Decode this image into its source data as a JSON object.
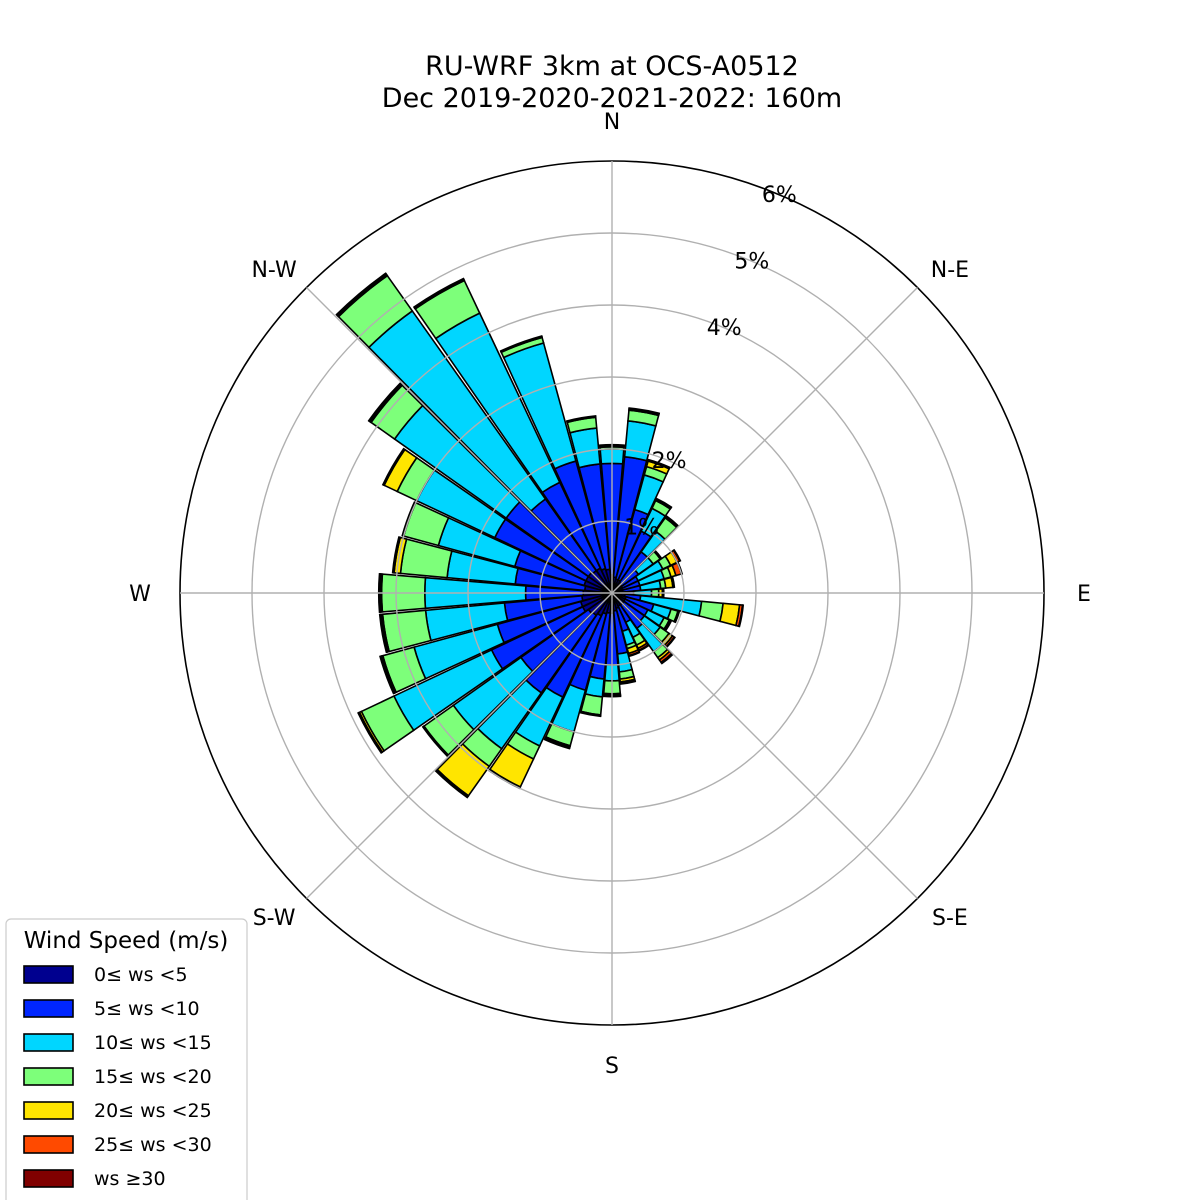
{
  "chart_data": {
    "type": "windrose",
    "title": "RU-WRF 3km at OCS-A0512",
    "subtitle": "Dec 2019-2020-2021-2022: 160m",
    "radial_ticks": [
      "1%",
      "2%",
      "4%",
      "5%",
      "6%"
    ],
    "radial_tick_values": [
      1,
      2,
      4,
      5,
      6
    ],
    "grid_rings_percent": [
      1,
      2,
      3,
      4,
      5,
      6
    ],
    "r_max_percent": 6,
    "directions": [
      "N",
      "N-E",
      "E",
      "S-E",
      "S",
      "S-W",
      "W",
      "N-W"
    ],
    "direction_angles_deg": [
      0,
      45,
      90,
      135,
      180,
      225,
      270,
      315
    ],
    "sector_count": 36,
    "sector_width_deg": 10,
    "legend": {
      "title": "Wind Speed (m/s)",
      "placement": "bottom-left",
      "entries": [
        "0≤ ws <5",
        "5≤ ws <10",
        "10≤ ws <15",
        "15≤ ws <20",
        "20≤ ws <25",
        "25≤ ws <30",
        "ws ≥30"
      ]
    },
    "colors": [
      "#00008f",
      "#0026ff",
      "#00d6ff",
      "#7dff7a",
      "#ffe500",
      "#ff4a00",
      "#800000"
    ],
    "sectors_center_deg": [
      0,
      10,
      20,
      30,
      40,
      50,
      60,
      70,
      80,
      90,
      100,
      110,
      120,
      130,
      140,
      150,
      160,
      170,
      180,
      190,
      200,
      210,
      220,
      230,
      240,
      250,
      260,
      270,
      280,
      290,
      300,
      310,
      320,
      330,
      340,
      350
    ],
    "cumulative_percent": [
      [
        0.25,
        1.8,
        2.0,
        2.03,
        2.04,
        2.05,
        2.06
      ],
      [
        0.22,
        1.9,
        2.4,
        2.55,
        2.57,
        2.58,
        2.58
      ],
      [
        0.2,
        1.2,
        1.7,
        1.82,
        1.9,
        1.91,
        1.92
      ],
      [
        0.2,
        0.95,
        1.3,
        1.42,
        1.43,
        1.44,
        1.45
      ],
      [
        0.18,
        0.7,
        1.05,
        1.28,
        1.3,
        1.31,
        1.31
      ],
      [
        0.16,
        0.45,
        0.7,
        0.82,
        0.83,
        0.84,
        0.84
      ],
      [
        0.16,
        0.4,
        0.78,
        0.9,
        1.0,
        1.04,
        1.05
      ],
      [
        0.15,
        0.4,
        0.75,
        0.85,
        0.92,
        1.0,
        1.01
      ],
      [
        0.15,
        0.4,
        0.68,
        0.75,
        0.85,
        0.86,
        0.87
      ],
      [
        0.15,
        0.3,
        0.55,
        0.65,
        0.7,
        0.72,
        0.72
      ],
      [
        0.18,
        0.4,
        1.25,
        1.55,
        1.78,
        1.82,
        1.83
      ],
      [
        0.2,
        0.6,
        0.85,
        0.95,
        0.96,
        0.97,
        0.97
      ],
      [
        0.2,
        0.55,
        0.8,
        0.88,
        0.9,
        0.91,
        0.91
      ],
      [
        0.2,
        0.55,
        0.82,
        0.97,
        1.03,
        1.06,
        1.07
      ],
      [
        0.2,
        0.6,
        1.0,
        1.1,
        1.14,
        1.18,
        1.2
      ],
      [
        0.2,
        0.45,
        0.68,
        0.8,
        0.85,
        0.88,
        0.89
      ],
      [
        0.22,
        0.55,
        0.75,
        0.8,
        0.87,
        0.9,
        0.91
      ],
      [
        0.25,
        0.85,
        1.1,
        1.2,
        1.24,
        1.26,
        1.27
      ],
      [
        0.28,
        1.0,
        1.22,
        1.4,
        1.42,
        1.43,
        1.44
      ],
      [
        0.28,
        1.2,
        1.45,
        1.7,
        1.71,
        1.72,
        1.72
      ],
      [
        0.3,
        1.4,
        2.0,
        2.2,
        2.22,
        2.23,
        2.24
      ],
      [
        0.35,
        1.6,
        2.35,
        2.55,
        2.98,
        3.0,
        3.0
      ],
      [
        0.38,
        1.7,
        2.65,
        2.95,
        3.45,
        3.46,
        3.48
      ],
      [
        0.4,
        1.55,
        2.7,
        3.2,
        3.2,
        3.21,
        3.22
      ],
      [
        0.45,
        1.85,
        3.35,
        3.85,
        3.88,
        3.89,
        3.9
      ],
      [
        0.45,
        1.65,
        2.85,
        3.3,
        3.32,
        3.33,
        3.34
      ],
      [
        0.42,
        1.5,
        2.6,
        3.2,
        3.22,
        3.23,
        3.24
      ],
      [
        0.4,
        1.2,
        2.6,
        3.2,
        3.22,
        3.23,
        3.24
      ],
      [
        0.38,
        1.35,
        2.3,
        2.95,
        3.04,
        3.05,
        3.06
      ],
      [
        0.4,
        1.4,
        2.5,
        3.0,
        3.01,
        3.02,
        3.02
      ],
      [
        0.4,
        1.8,
        3.0,
        3.3,
        3.5,
        3.52,
        3.52
      ],
      [
        0.4,
        1.8,
        3.7,
        4.1,
        4.12,
        4.13,
        4.14
      ],
      [
        0.38,
        1.6,
        4.8,
        5.4,
        5.42,
        5.43,
        5.44
      ],
      [
        0.38,
        1.7,
        4.3,
        4.8,
        4.81,
        4.82,
        4.83
      ],
      [
        0.35,
        1.9,
        3.6,
        3.68,
        3.69,
        3.7,
        3.7
      ],
      [
        0.33,
        1.8,
        2.3,
        2.45,
        2.46,
        2.47,
        2.47
      ]
    ]
  }
}
